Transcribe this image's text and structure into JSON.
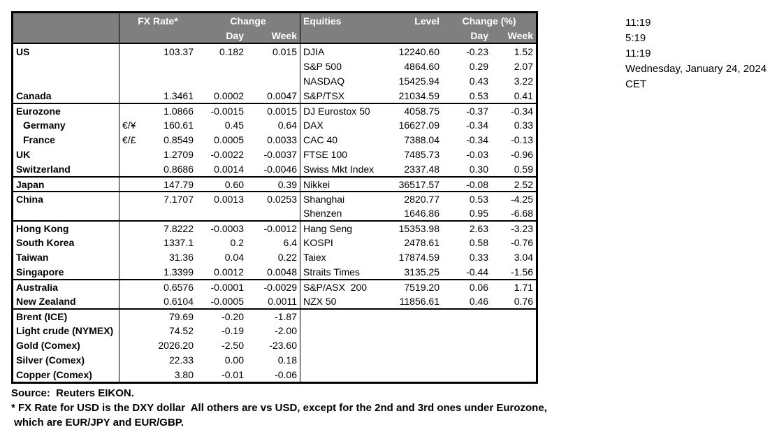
{
  "colors": {
    "header_bg": "#7f7f7f",
    "header_text": "#ffffff",
    "border": "#000000",
    "text": "#000000",
    "background": "#ffffff"
  },
  "table": {
    "fx_header": {
      "rate": "FX Rate*",
      "change": "Change",
      "day": "Day",
      "week": "Week"
    },
    "eq_header": {
      "title": "Equities",
      "level": "Level",
      "change": "Change (%)",
      "day": "Day",
      "week": "Week"
    },
    "rows": [
      {
        "fx": "US",
        "sym": "",
        "rate": "103.37",
        "fday": "0.182",
        "fweek": "0.015",
        "eq": "DJIA",
        "level": "12240.60",
        "eday": "-0.23",
        "eweek": "1.52",
        "sep": false,
        "indent": false
      },
      {
        "fx": "",
        "sym": "",
        "rate": "",
        "fday": "",
        "fweek": "",
        "eq": "S&P 500",
        "level": "4864.60",
        "eday": "0.29",
        "eweek": "2.07",
        "sep": false,
        "indent": false
      },
      {
        "fx": "",
        "sym": "",
        "rate": "",
        "fday": "",
        "fweek": "",
        "eq": "NASDAQ",
        "level": "15425.94",
        "eday": "0.43",
        "eweek": "3.22",
        "sep": false,
        "indent": false
      },
      {
        "fx": "Canada",
        "sym": "",
        "rate": "1.3461",
        "fday": "0.0002",
        "fweek": "0.0047",
        "eq": "S&P/TSX",
        "level": "21034.59",
        "eday": "0.53",
        "eweek": "0.41",
        "sep": false,
        "indent": false
      },
      {
        "fx": "Eurozone",
        "sym": "",
        "rate": "1.0866",
        "fday": "-0.0015",
        "fweek": "0.0015",
        "eq": "DJ Eurostox 50",
        "level": "4058.75",
        "eday": "-0.37",
        "eweek": "-0.34",
        "sep": true,
        "indent": false
      },
      {
        "fx": "Germany",
        "sym": "€/¥",
        "rate": "160.61",
        "fday": "0.45",
        "fweek": "0.64",
        "eq": "DAX",
        "level": "16627.09",
        "eday": "-0.34",
        "eweek": "0.33",
        "sep": false,
        "indent": true
      },
      {
        "fx": "France",
        "sym": "€/£",
        "rate": "0.8549",
        "fday": "0.0005",
        "fweek": "0.0033",
        "eq": "CAC 40",
        "level": "7388.04",
        "eday": "-0.34",
        "eweek": "-0.13",
        "sep": false,
        "indent": true
      },
      {
        "fx": "UK",
        "sym": "",
        "rate": "1.2709",
        "fday": "-0.0022",
        "fweek": "-0.0037",
        "eq": "FTSE 100",
        "level": "7485.73",
        "eday": "-0.03",
        "eweek": "-0.96",
        "sep": false,
        "indent": false
      },
      {
        "fx": "Switzerland",
        "sym": "",
        "rate": "0.8686",
        "fday": "0.0014",
        "fweek": "-0.0046",
        "eq": "Swiss Mkt Index",
        "level": "2337.48",
        "eday": "0.30",
        "eweek": "0.59",
        "sep": false,
        "indent": false
      },
      {
        "fx": "Japan",
        "sym": "",
        "rate": "147.79",
        "fday": "0.60",
        "fweek": "0.39",
        "eq": "Nikkei",
        "level": "36517.57",
        "eday": "-0.08",
        "eweek": "2.52",
        "sep": true,
        "indent": false
      },
      {
        "fx": "China",
        "sym": "",
        "rate": "7.1707",
        "fday": "0.0013",
        "fweek": "0.0253",
        "eq": "Shanghai",
        "level": "2820.77",
        "eday": "0.53",
        "eweek": "-4.25",
        "sep": true,
        "indent": false
      },
      {
        "fx": "",
        "sym": "",
        "rate": "",
        "fday": "",
        "fweek": "",
        "eq": "Shenzen",
        "level": "1646.86",
        "eday": "0.95",
        "eweek": "-6.68",
        "sep": false,
        "indent": false
      },
      {
        "fx": "Hong Kong",
        "sym": "",
        "rate": "7.8222",
        "fday": "-0.0003",
        "fweek": "-0.0012",
        "eq": "Hang Seng",
        "level": "15353.98",
        "eday": "2.63",
        "eweek": "-3.23",
        "sep": true,
        "indent": false
      },
      {
        "fx": "South Korea",
        "sym": "",
        "rate": "1337.1",
        "fday": "0.2",
        "fweek": "6.4",
        "eq": "KOSPI",
        "level": "2478.61",
        "eday": "0.58",
        "eweek": "-0.76",
        "sep": false,
        "indent": false
      },
      {
        "fx": "Taiwan",
        "sym": "",
        "rate": "31.36",
        "fday": "0.04",
        "fweek": "0.22",
        "eq": "Taiex",
        "level": "17874.59",
        "eday": "0.33",
        "eweek": "3.04",
        "sep": false,
        "indent": false
      },
      {
        "fx": "Singapore",
        "sym": "",
        "rate": "1.3399",
        "fday": "0.0012",
        "fweek": "0.0048",
        "eq": "Straits Times",
        "level": "3135.25",
        "eday": "-0.44",
        "eweek": "-1.56",
        "sep": false,
        "indent": false
      },
      {
        "fx": "Australia",
        "sym": "",
        "rate": "0.6576",
        "fday": "-0.0001",
        "fweek": "-0.0029",
        "eq": "S&P/ASX  200",
        "level": "7519.20",
        "eday": "0.06",
        "eweek": "1.71",
        "sep": true,
        "indent": false
      },
      {
        "fx": "New Zealand",
        "sym": "",
        "rate": "0.6104",
        "fday": "-0.0005",
        "fweek": "0.0011",
        "eq": "NZX 50",
        "level": "11856.61",
        "eday": "0.46",
        "eweek": "0.76",
        "sep": false,
        "indent": false
      },
      {
        "fx": "Brent (ICE)",
        "sym": "",
        "rate": "79.69",
        "fday": "-0.20",
        "fweek": "-1.87",
        "eq": "",
        "level": "",
        "eday": "",
        "eweek": "",
        "sep": true,
        "indent": false
      },
      {
        "fx": "Light crude (NYMEX)",
        "sym": "",
        "rate": "74.52",
        "fday": "-0.19",
        "fweek": "-2.00",
        "eq": "",
        "level": "",
        "eday": "",
        "eweek": "",
        "sep": false,
        "indent": false
      },
      {
        "fx": "Gold (Comex)",
        "sym": "",
        "rate": "2026.20",
        "fday": "-2.50",
        "fweek": "-23.60",
        "eq": "",
        "level": "",
        "eday": "",
        "eweek": "",
        "sep": false,
        "indent": false
      },
      {
        "fx": "Silver (Comex)",
        "sym": "",
        "rate": "22.33",
        "fday": "0.00",
        "fweek": "0.18",
        "eq": "",
        "level": "",
        "eday": "",
        "eweek": "",
        "sep": false,
        "indent": false
      },
      {
        "fx": "Copper (Comex)",
        "sym": "",
        "rate": "3.80",
        "fday": "-0.01",
        "fweek": "-0.06",
        "eq": "",
        "level": "",
        "eday": "",
        "eweek": "",
        "sep": false,
        "indent": false
      }
    ]
  },
  "timestamps": {
    "lines": [
      "11:19",
      "5:19",
      "11:19",
      "Wednesday, January 24, 2024",
      "CET"
    ]
  },
  "footnotes": {
    "lines": [
      "Source:  Reuters EIKON.",
      "* FX Rate for USD is the DXY dollar  All others are vs USD, except for the 2nd and 3rd ones under Eurozone,",
      " which are EUR/JPY and EUR/GBP."
    ]
  }
}
